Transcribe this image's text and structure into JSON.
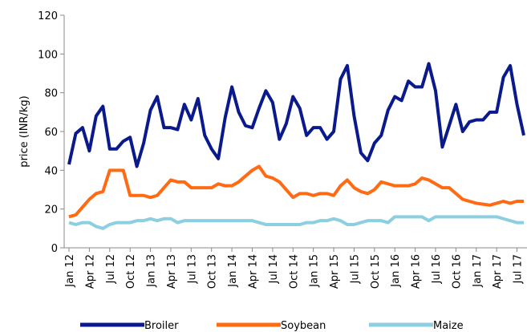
{
  "chart_data": {
    "type": "line",
    "y_label": "price (INR/kg)",
    "categories": [
      "Jan 12",
      null,
      null,
      "Apr 12",
      null,
      null,
      "Jul 12",
      null,
      null,
      "Oct 12",
      null,
      null,
      "Jan 13",
      null,
      null,
      "Apr 13",
      null,
      null,
      "Jul 13",
      null,
      null,
      "Oct 13",
      null,
      null,
      "Jan 14",
      null,
      null,
      "Apr 14",
      null,
      null,
      "Jul 14",
      null,
      null,
      "Oct 14",
      null,
      null,
      "Jan 15",
      null,
      null,
      "Apr 15",
      null,
      null,
      "Jul 15",
      null,
      null,
      "Oct 15",
      null,
      null,
      "Jan 16",
      null,
      null,
      "Apr 16",
      null,
      null,
      "Jul 16",
      null,
      null,
      "Oct 16",
      null,
      null,
      "Jan 17",
      null,
      null,
      "Apr 17",
      null,
      null,
      "Jul 17",
      null
    ],
    "series": [
      {
        "name": "Broiler",
        "color": "#0a1a8c",
        "values": [
          43,
          59,
          62,
          50,
          68,
          73,
          51,
          51,
          55,
          57,
          42,
          54,
          71,
          78,
          62,
          62,
          61,
          74,
          66,
          77,
          58,
          51,
          46,
          67,
          83,
          70,
          63,
          62,
          72,
          81,
          75,
          56,
          64,
          78,
          72,
          58,
          62,
          62,
          56,
          60,
          87,
          94,
          68,
          49,
          45,
          54,
          58,
          71,
          78,
          76,
          86,
          83,
          83,
          95,
          81,
          52,
          63,
          74,
          60,
          65,
          66,
          66,
          70,
          70,
          88,
          94,
          74,
          58
        ]
      },
      {
        "name": "Soybean",
        "color": "#ff6a13",
        "values": [
          16,
          17,
          21,
          25,
          28,
          29,
          40,
          40,
          40,
          27,
          27,
          27,
          26,
          27,
          31,
          35,
          34,
          34,
          31,
          31,
          31,
          31,
          33,
          32,
          32,
          34,
          37,
          40,
          42,
          37,
          36,
          34,
          30,
          26,
          28,
          28,
          27,
          28,
          28,
          27,
          32,
          35,
          31,
          29,
          28,
          30,
          34,
          33,
          32,
          32,
          32,
          33,
          36,
          35,
          33,
          31,
          31,
          28,
          25,
          24,
          23,
          22.5,
          22,
          23,
          24,
          23,
          24,
          24
        ]
      },
      {
        "name": "Maize",
        "color": "#8ccfe0",
        "values": [
          13,
          12,
          13,
          13,
          11,
          10,
          12,
          13,
          13,
          13,
          14,
          14,
          15,
          14,
          15,
          15,
          13,
          14,
          14,
          14,
          14,
          14,
          14,
          14,
          14,
          14,
          14,
          14,
          13,
          12,
          12,
          12,
          12,
          12,
          12,
          13,
          13,
          14,
          14,
          15,
          14,
          12,
          12,
          13,
          14,
          14,
          14,
          13,
          16,
          16,
          16,
          16,
          16,
          14,
          16,
          16,
          16,
          16,
          16,
          16,
          16,
          16,
          16,
          16,
          15,
          14,
          13,
          13
        ]
      }
    ],
    "ylim": [
      0,
      120
    ],
    "yticks": [
      0,
      20,
      40,
      60,
      80,
      100,
      120
    ],
    "grid": false,
    "legend": "bottom"
  }
}
